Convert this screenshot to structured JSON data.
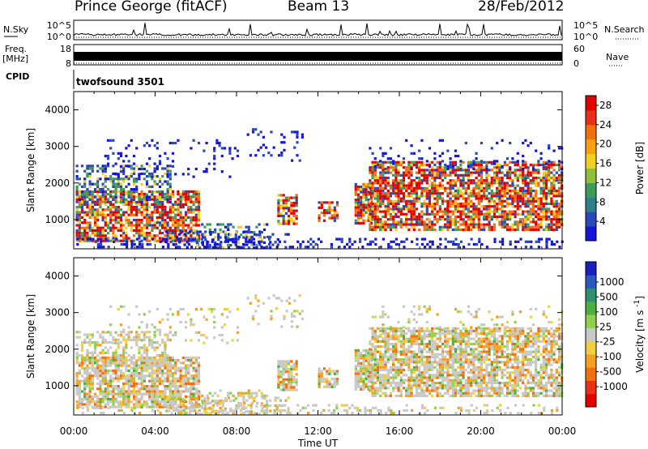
{
  "header": {
    "station": "Prince George (fitACF)",
    "beam": "Beam 13",
    "date": "28/Feb/2012"
  },
  "side_labels": {
    "nsky": "N.Sky",
    "freq": "Freq.",
    "mhz": "[MHz]",
    "cpid": "CPID",
    "nsearch": "N.Search",
    "nave": "Nave",
    "cpid_value": "twofsound 3501"
  },
  "strip_ticks": {
    "noise_left": [
      "10^5",
      "10^0"
    ],
    "noise_right": [
      "10^5",
      "10^0"
    ],
    "freq_left": [
      "18",
      "8"
    ],
    "nave_right": [
      "60",
      "0"
    ]
  },
  "colors": {
    "power_scale": [
      "#1515d9",
      "#2a48b8",
      "#2f7f8a",
      "#3f9a5a",
      "#8fbf3a",
      "#f0d020",
      "#f5a010",
      "#f07010",
      "#e83018",
      "#e00000"
    ],
    "velocity_scale": [
      "#1a20c0",
      "#2a58c0",
      "#2f8f70",
      "#4caf40",
      "#90d050",
      "#c8c8c8",
      "#f0d040",
      "#f5a020",
      "#f07010",
      "#e83018",
      "#e00000"
    ]
  },
  "chart_data": [
    {
      "type": "heatmap",
      "title": "",
      "ylabel": "Slant Range [km]",
      "xlabel": "",
      "ylim": [
        200,
        4500
      ],
      "xlim": [
        0,
        24
      ],
      "y_ticks": [
        "1000",
        "2000",
        "3000",
        "4000"
      ],
      "colorbar": {
        "label": "Power [dB]",
        "ticks": [
          "4",
          "8",
          "12",
          "16",
          "20",
          "24",
          "28"
        ],
        "range": [
          0,
          30
        ]
      }
    },
    {
      "type": "heatmap",
      "title": "",
      "ylabel": "Slant Range [km]",
      "xlabel": "Time UT",
      "ylim": [
        200,
        4500
      ],
      "xlim": [
        0,
        24
      ],
      "y_ticks": [
        "1000",
        "2000",
        "3000",
        "4000"
      ],
      "x_ticks": [
        "00:00",
        "04:00",
        "08:00",
        "12:00",
        "16:00",
        "20:00",
        "00:00"
      ],
      "colorbar": {
        "label": "Velocity",
        "unit": "m s",
        "unit_sup": "-1",
        "ticks": [
          "1000",
          "500",
          "100",
          "25",
          "-25",
          "-100",
          "-500",
          "-1000"
        ]
      }
    }
  ]
}
